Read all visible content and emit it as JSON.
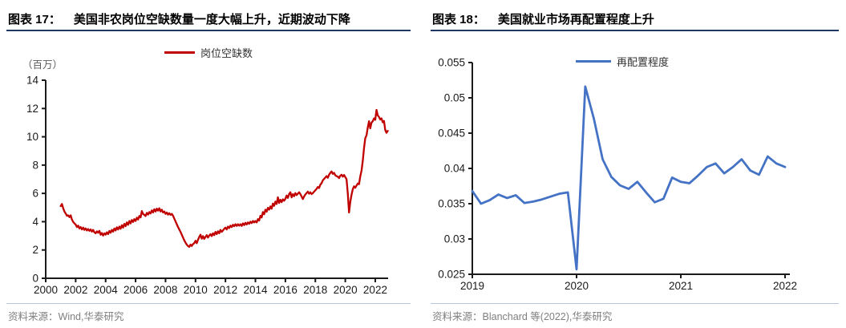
{
  "page": {
    "background": "#ffffff",
    "rule_color": "#1F3864",
    "source_rule_color": "#B7C5DC",
    "source_text_color": "#7f7f7f",
    "axis_color": "#1a1a1a"
  },
  "chart_data": [
    {
      "type": "line",
      "figure_label": "图表 17：",
      "title": "美国非农岗位空缺数量一度大幅上升，近期波动下降",
      "unit_label": "（百万）",
      "legend": "岗位空缺数",
      "line_color": "#C00000",
      "source_prefix": "资料来源：",
      "source": "Wind,华泰研究",
      "xlim": [
        2000,
        2022.9
      ],
      "ylim": [
        0,
        14
      ],
      "x_ticks": [
        2000,
        2002,
        2004,
        2006,
        2008,
        2010,
        2012,
        2014,
        2016,
        2018,
        2020,
        2022
      ],
      "y_ticks": [
        0,
        2,
        4,
        6,
        8,
        10,
        12,
        14
      ],
      "y_tick_labels": [
        "0",
        "2",
        "4",
        "6",
        "8",
        "10",
        "12",
        "14"
      ],
      "x_tick_labels": [
        "2000",
        "2002",
        "2004",
        "2006",
        "2008",
        "2010",
        "2012",
        "2014",
        "2016",
        "2018",
        "2020",
        "2022"
      ],
      "series": [
        {
          "name": "岗位空缺数",
          "x_start": 2001.0,
          "x_step_years": 0.0833333,
          "values": [
            5.1,
            5.25,
            4.95,
            4.72,
            4.58,
            4.42,
            4.45,
            4.32,
            4.45,
            4.15,
            3.98,
            3.88,
            3.8,
            3.62,
            3.72,
            3.52,
            3.62,
            3.45,
            3.58,
            3.42,
            3.52,
            3.38,
            3.48,
            3.35,
            3.45,
            3.3,
            3.42,
            3.25,
            3.18,
            3.32,
            3.22,
            3.35,
            3.08,
            3.2,
            3.02,
            3.18,
            3.08,
            3.25,
            3.12,
            3.35,
            3.22,
            3.42,
            3.3,
            3.52,
            3.38,
            3.6,
            3.45,
            3.65,
            3.5,
            3.75,
            3.58,
            3.85,
            3.68,
            3.95,
            3.78,
            4.05,
            3.88,
            4.12,
            3.98,
            4.18,
            4.05,
            4.28,
            4.15,
            4.4,
            4.3,
            4.75,
            4.55,
            4.48,
            4.4,
            4.62,
            4.5,
            4.68,
            4.58,
            4.8,
            4.65,
            4.88,
            4.72,
            4.92,
            4.78,
            4.95,
            4.72,
            4.85,
            4.65,
            4.72,
            4.55,
            4.65,
            4.5,
            4.6,
            4.48,
            4.55,
            4.42,
            4.22,
            4.02,
            3.82,
            3.62,
            3.45,
            3.28,
            3.08,
            2.88,
            2.68,
            2.52,
            2.38,
            2.28,
            2.22,
            2.38,
            2.28,
            2.42,
            2.48,
            2.65,
            2.48,
            2.72,
            2.92,
            3.08,
            2.8,
            2.98,
            2.78,
            2.92,
            3.05,
            2.88,
            3.02,
            3.12,
            2.98,
            3.18,
            3.05,
            3.28,
            3.12,
            3.32,
            3.18,
            3.42,
            3.28,
            3.38,
            3.5,
            3.58,
            3.45,
            3.65,
            3.55,
            3.72,
            3.62,
            3.78,
            3.68,
            3.82,
            3.7,
            3.82,
            3.72,
            3.82,
            3.7,
            3.88,
            3.76,
            3.92,
            3.8,
            3.95,
            3.85,
            4.0,
            3.9,
            4.05,
            3.95,
            4.05,
            3.95,
            4.18,
            4.08,
            4.42,
            4.3,
            4.68,
            4.52,
            4.85,
            4.7,
            4.98,
            4.85,
            5.08,
            4.92,
            5.28,
            5.12,
            5.42,
            5.25,
            5.72,
            5.32,
            5.55,
            5.38,
            5.58,
            5.48,
            5.62,
            5.85,
            5.68,
            5.95,
            6.08,
            5.72,
            5.95,
            5.8,
            6.02,
            5.88,
            5.98,
            6.08,
            5.95,
            5.78,
            5.6,
            5.78,
            5.92,
            6.02,
            6.12,
            5.98,
            6.08,
            5.95,
            6.02,
            6.12,
            6.22,
            6.32,
            6.45,
            6.38,
            6.62,
            6.72,
            6.92,
            7.02,
            7.12,
            7.22,
            7.1,
            7.32,
            7.45,
            7.55,
            7.38,
            7.45,
            7.28,
            7.22,
            7.18,
            7.08,
            7.25,
            7.32,
            7.18,
            7.3,
            7.15,
            7.0,
            6.0,
            4.65,
            5.4,
            5.9,
            6.3,
            6.5,
            6.4,
            6.55,
            6.7,
            6.65,
            7.2,
            7.6,
            8.3,
            9.2,
            9.9,
            10.1,
            10.65,
            11.1,
            10.6,
            11.0,
            11.1,
            11.3,
            11.2,
            11.9,
            11.52,
            11.4,
            11.22,
            11.3,
            11.02,
            11.12,
            10.48,
            10.28,
            10.42
          ]
        }
      ]
    },
    {
      "type": "line",
      "figure_label": "图表 18：",
      "title": "美国就业市场再配置程度上升",
      "unit_label": "",
      "legend": "再配置程度",
      "line_color": "#4472C4",
      "source_prefix": "资料来源：",
      "source": "Blanchard 等(2022),华泰研究",
      "xlim": [
        2019,
        2022.08
      ],
      "ylim": [
        0.025,
        0.055
      ],
      "x_ticks": [
        2019,
        2020,
        2021,
        2022
      ],
      "y_ticks": [
        0.025,
        0.03,
        0.035,
        0.04,
        0.045,
        0.05,
        0.055
      ],
      "y_tick_labels": [
        "0.025",
        "0.03",
        "0.035",
        "0.04",
        "0.045",
        "0.05",
        "0.055"
      ],
      "x_tick_labels": [
        "2019",
        "2020",
        "2021",
        "2022"
      ],
      "series": [
        {
          "name": "再配置程度",
          "x_start": 2019.0,
          "x_step_years": 0.0833333,
          "values": [
            0.0368,
            0.035,
            0.0355,
            0.0363,
            0.0358,
            0.0362,
            0.0351,
            0.0353,
            0.0356,
            0.036,
            0.0364,
            0.0366,
            0.0257,
            0.0516,
            0.047,
            0.0413,
            0.0388,
            0.0376,
            0.0371,
            0.0381,
            0.0366,
            0.0352,
            0.0357,
            0.0387,
            0.0381,
            0.0379,
            0.039,
            0.0402,
            0.0407,
            0.0393,
            0.0402,
            0.0413,
            0.0397,
            0.0391,
            0.0417,
            0.0407,
            0.0402
          ]
        }
      ]
    }
  ]
}
